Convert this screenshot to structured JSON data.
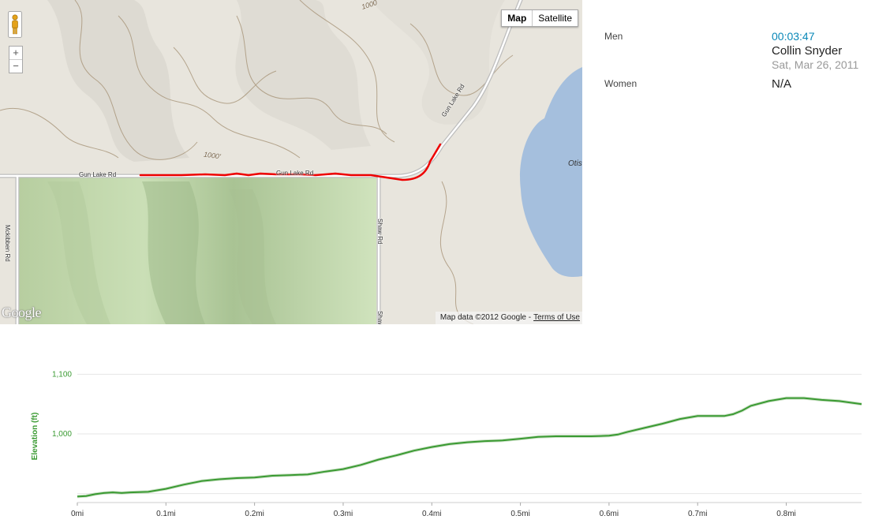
{
  "map": {
    "map_type_buttons": {
      "map": "Map",
      "satellite": "Satellite"
    },
    "zoom": {
      "in": "+",
      "out": "−"
    },
    "logo": "Google",
    "attribution": {
      "data": "Map data ©2012 Google -",
      "terms": "Terms of Use"
    },
    "road_labels": {
      "gun_lake_rd_west": "Gun Lake Rd",
      "gun_lake_rd_mid": "Gun Lake Rd",
      "gun_lake_rd_ne": "Gun Lake Rd",
      "mckibben_rd": "Mckibben Rd",
      "shaw_rd": "Shaw Rd",
      "shaw_rd_south": "Shaw"
    },
    "contour_labels": {
      "top": "1000",
      "mid": "1000'"
    },
    "lake_label": "Otis",
    "colors": {
      "route": "#ee0000",
      "park": "#c9dfb4",
      "water": "#a5bfdd",
      "land": "#e9e6df"
    }
  },
  "leaderboard": {
    "men": {
      "label": "Men",
      "time": "00:03:47",
      "name": "Collin Snyder",
      "date": "Sat, Mar 26, 2011"
    },
    "women": {
      "label": "Women",
      "value": "N/A"
    }
  },
  "chart_data": {
    "type": "line",
    "title": "",
    "xlabel": "",
    "ylabel": "Elevation (ft)",
    "x_ticks": [
      0,
      0.1,
      0.2,
      0.3,
      0.4,
      0.5,
      0.6,
      0.7,
      0.8
    ],
    "x_tick_labels": [
      "0mi",
      "0.1mi",
      "0.2mi",
      "0.3mi",
      "0.4mi",
      "0.5mi",
      "0.6mi",
      "0.7mi",
      "0.8mi"
    ],
    "y_ticks": [
      1000,
      1100
    ],
    "y_tick_labels": [
      "1,000",
      "1,100"
    ],
    "xlim": [
      0,
      0.885
    ],
    "ylim": [
      885,
      1115
    ],
    "grid": true,
    "line_color": "#3a9a32",
    "series": [
      {
        "x": [
          0,
          0.01,
          0.02,
          0.03,
          0.04,
          0.05,
          0.06,
          0.08,
          0.1,
          0.12,
          0.14,
          0.16,
          0.18,
          0.2,
          0.22,
          0.24,
          0.26,
          0.28,
          0.3,
          0.32,
          0.34,
          0.36,
          0.38,
          0.4,
          0.42,
          0.44,
          0.46,
          0.48,
          0.5,
          0.52,
          0.54,
          0.56,
          0.58,
          0.6,
          0.61,
          0.62,
          0.64,
          0.66,
          0.68,
          0.7,
          0.72,
          0.73,
          0.74,
          0.75,
          0.76,
          0.78,
          0.8,
          0.82,
          0.84,
          0.86,
          0.885
        ],
        "y": [
          895,
          896,
          899,
          901,
          902,
          901,
          902,
          903,
          908,
          915,
          921,
          924,
          926,
          927,
          930,
          931,
          932,
          937,
          941,
          948,
          957,
          964,
          972,
          978,
          983,
          986,
          988,
          989,
          992,
          995,
          996,
          996,
          996,
          997,
          999,
          1003,
          1010,
          1017,
          1025,
          1030,
          1030,
          1030,
          1033,
          1039,
          1047,
          1055,
          1060,
          1060,
          1057,
          1055,
          1050
        ]
      }
    ]
  }
}
